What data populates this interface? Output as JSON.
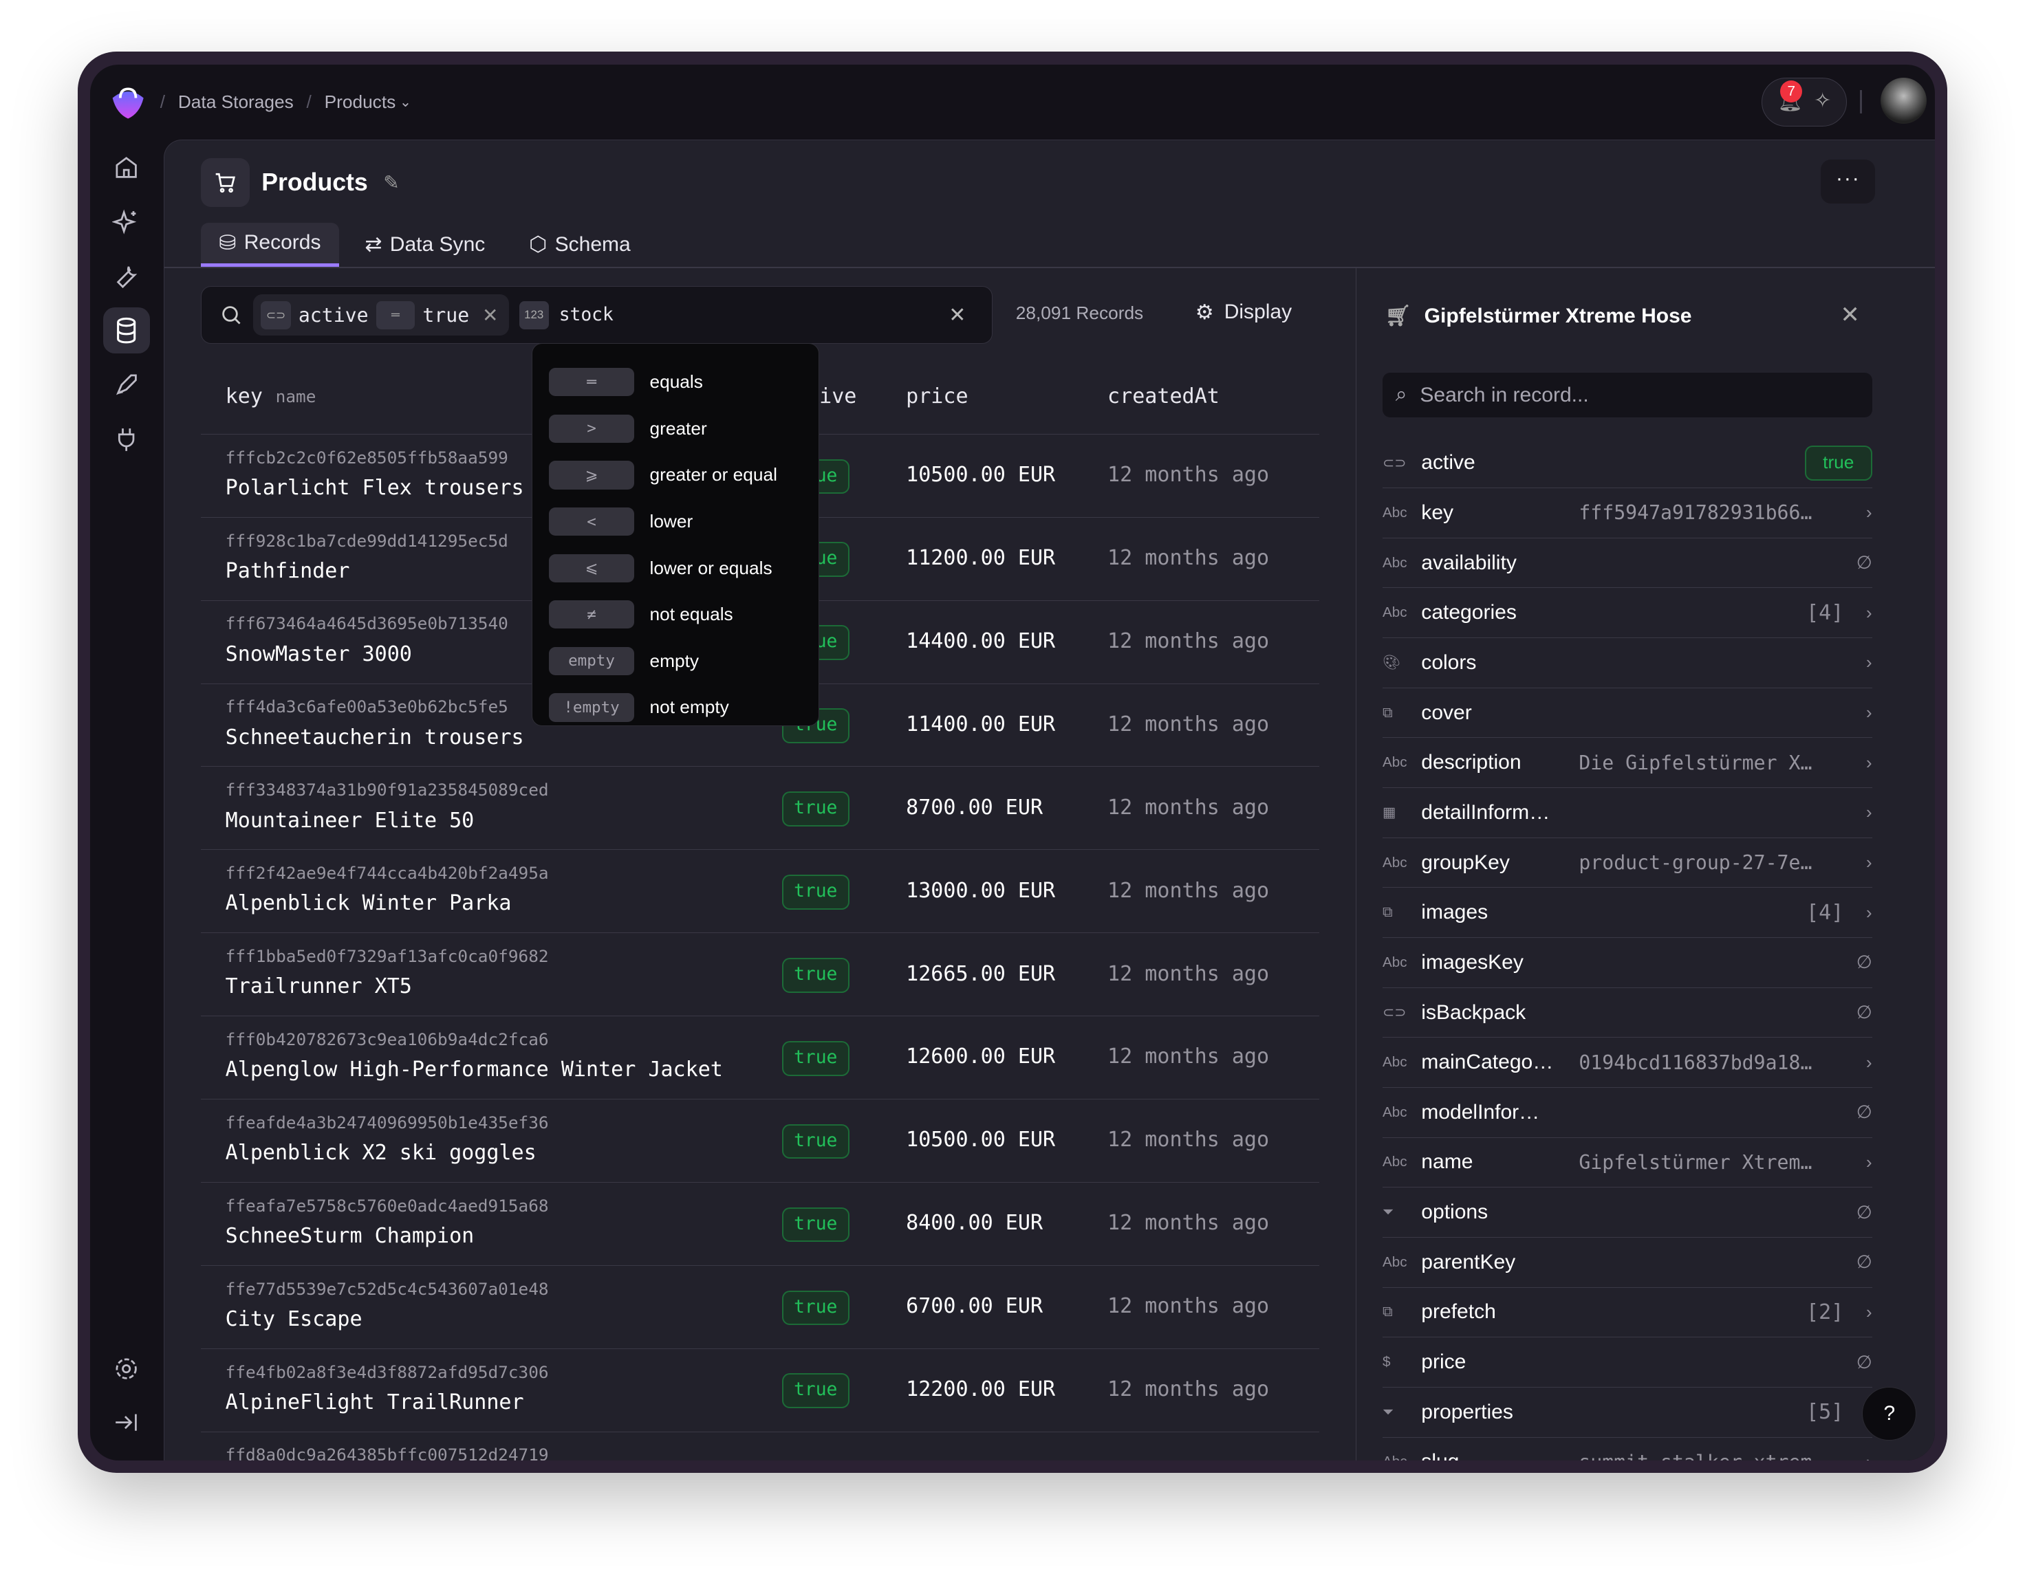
{
  "topbar": {
    "breadcrumb": [
      "Data Storages",
      "Products"
    ],
    "notifications": "7"
  },
  "page": {
    "title": "Products",
    "more": "···"
  },
  "tabs": [
    {
      "label": "Records",
      "active": true
    },
    {
      "label": "Data Sync"
    },
    {
      "label": "Schema"
    }
  ],
  "filter": {
    "field": "active",
    "operator_icon": "equals",
    "value": "true",
    "pending_field": "stock",
    "pending_type": "123"
  },
  "records_count": "28,091 Records",
  "display_label": "Display",
  "table": {
    "columns": [
      "key",
      "name",
      "active",
      "price",
      "createdAt"
    ],
    "rows": [
      {
        "key": "fffcb2c2c0f62e8505ffb58aa599",
        "name": "Polarlicht Flex trousers",
        "active": "true",
        "price": "10500.00 EUR",
        "createdAt": "12 months ago"
      },
      {
        "key": "fff928c1ba7cde99dd141295ec5d",
        "name": "Pathfinder",
        "active": "true",
        "price": "11200.00 EUR",
        "createdAt": "12 months ago"
      },
      {
        "key": "fff673464a4645d3695e0b713540",
        "name": "SnowMaster 3000",
        "active": "true",
        "price": "14400.00 EUR",
        "createdAt": "12 months ago"
      },
      {
        "key": "fff4da3c6afe00a53e0b62bc5fe5",
        "name": "Schneetaucherin trousers",
        "active": "true",
        "price": "11400.00 EUR",
        "createdAt": "12 months ago"
      },
      {
        "key": "fff3348374a31b90f91a235845089ced",
        "name": "Mountaineer Elite 50",
        "active": "true",
        "price": "8700.00 EUR",
        "createdAt": "12 months ago"
      },
      {
        "key": "fff2f42ae9e4f744cca4b420bf2a495a",
        "name": "Alpenblick Winter Parka",
        "active": "true",
        "price": "13000.00 EUR",
        "createdAt": "12 months ago"
      },
      {
        "key": "fff1bba5ed0f7329af13afc0ca0f9682",
        "name": "Trailrunner XT5",
        "active": "true",
        "price": "12665.00 EUR",
        "createdAt": "12 months ago"
      },
      {
        "key": "fff0b420782673c9ea106b9a4dc2fca6",
        "name": "Alpenglow High-Performance Winter Jacket",
        "active": "true",
        "price": "12600.00 EUR",
        "createdAt": "12 months ago"
      },
      {
        "key": "ffeafde4a3b24740969950b1e435ef36",
        "name": "Alpenblick X2 ski goggles",
        "active": "true",
        "price": "10500.00 EUR",
        "createdAt": "12 months ago"
      },
      {
        "key": "ffeafa7e5758c5760e0adc4aed915a68",
        "name": "SchneeSturm Champion",
        "active": "true",
        "price": "8400.00 EUR",
        "createdAt": "12 months ago"
      },
      {
        "key": "ffe77d5539e7c52d5c4c543607a01e48",
        "name": "City Escape",
        "active": "true",
        "price": "6700.00 EUR",
        "createdAt": "12 months ago"
      },
      {
        "key": "ffe4fb02a8f3e4d3f8872afd95d7c306",
        "name": "AlpineFlight TrailRunner",
        "active": "true",
        "price": "12200.00 EUR",
        "createdAt": "12 months ago"
      },
      {
        "key": "ffd8a0dc9a264385bffc007512d24719",
        "name": "",
        "active": "",
        "price": "",
        "createdAt": ""
      }
    ]
  },
  "operators": [
    {
      "symbol": "═",
      "label": "equals"
    },
    {
      "symbol": ">",
      "label": "greater"
    },
    {
      "symbol": "⩾",
      "label": "greater or equal"
    },
    {
      "symbol": "<",
      "label": "lower"
    },
    {
      "symbol": "⩽",
      "label": "lower or equals"
    },
    {
      "symbol": "≠",
      "label": "not equals"
    },
    {
      "symbol": "empty",
      "label": "empty"
    },
    {
      "symbol": "!empty",
      "label": "not empty"
    }
  ],
  "record": {
    "title": "Gipfelstürmer Xtreme Hose",
    "search_placeholder": "Search in record...",
    "fields": [
      {
        "icon": "toggle",
        "name": "active",
        "value": "true"
      },
      {
        "icon": "Abc",
        "name": "key",
        "value": "fff5947a91782931b66…",
        "chevron": true
      },
      {
        "icon": "Abc",
        "name": "availability",
        "null": "∅"
      },
      {
        "icon": "Abc",
        "name": "categories",
        "count": "[4]",
        "chevron": true
      },
      {
        "icon": "palette",
        "name": "colors",
        "chevron": true
      },
      {
        "icon": "relation",
        "name": "cover",
        "chevron": true
      },
      {
        "icon": "Abc",
        "name": "description",
        "value": "Die Gipfelstürmer X…",
        "chevron": true
      },
      {
        "icon": "grid",
        "name": "detailInform…",
        "chevron": true
      },
      {
        "icon": "Abc",
        "name": "groupKey",
        "value": "product-group-27-7e…",
        "chevron": true
      },
      {
        "icon": "relation",
        "name": "images",
        "count": "[4]",
        "chevron": true
      },
      {
        "icon": "Abc",
        "name": "imagesKey",
        "null": "∅"
      },
      {
        "icon": "toggle",
        "name": "isBackpack",
        "null": "∅"
      },
      {
        "icon": "Abc",
        "name": "mainCatego…",
        "value": "0194bcd116837bd9a18…",
        "chevron": true
      },
      {
        "icon": "Abc",
        "name": "modelInfor…",
        "null": "∅"
      },
      {
        "icon": "Abc",
        "name": "name",
        "value": "Gipfelstürmer Xtrem…",
        "chevron": true
      },
      {
        "icon": "tag",
        "name": "options",
        "null": "∅"
      },
      {
        "icon": "Abc",
        "name": "parentKey",
        "null": "∅"
      },
      {
        "icon": "relation",
        "name": "prefetch",
        "count": "[2]",
        "chevron": true
      },
      {
        "icon": "dollar",
        "name": "price",
        "null": "∅"
      },
      {
        "icon": "tag",
        "name": "properties",
        "count": "[5]",
        "chevron": true
      },
      {
        "icon": "Abc",
        "name": "slug",
        "value": "summit-stalker-xtrem…",
        "chevron": true
      }
    ]
  },
  "help": "?",
  "colors": {
    "accent": "#9b7bff",
    "true_green": "#22c05a",
    "badge_red": "#f0323f"
  }
}
